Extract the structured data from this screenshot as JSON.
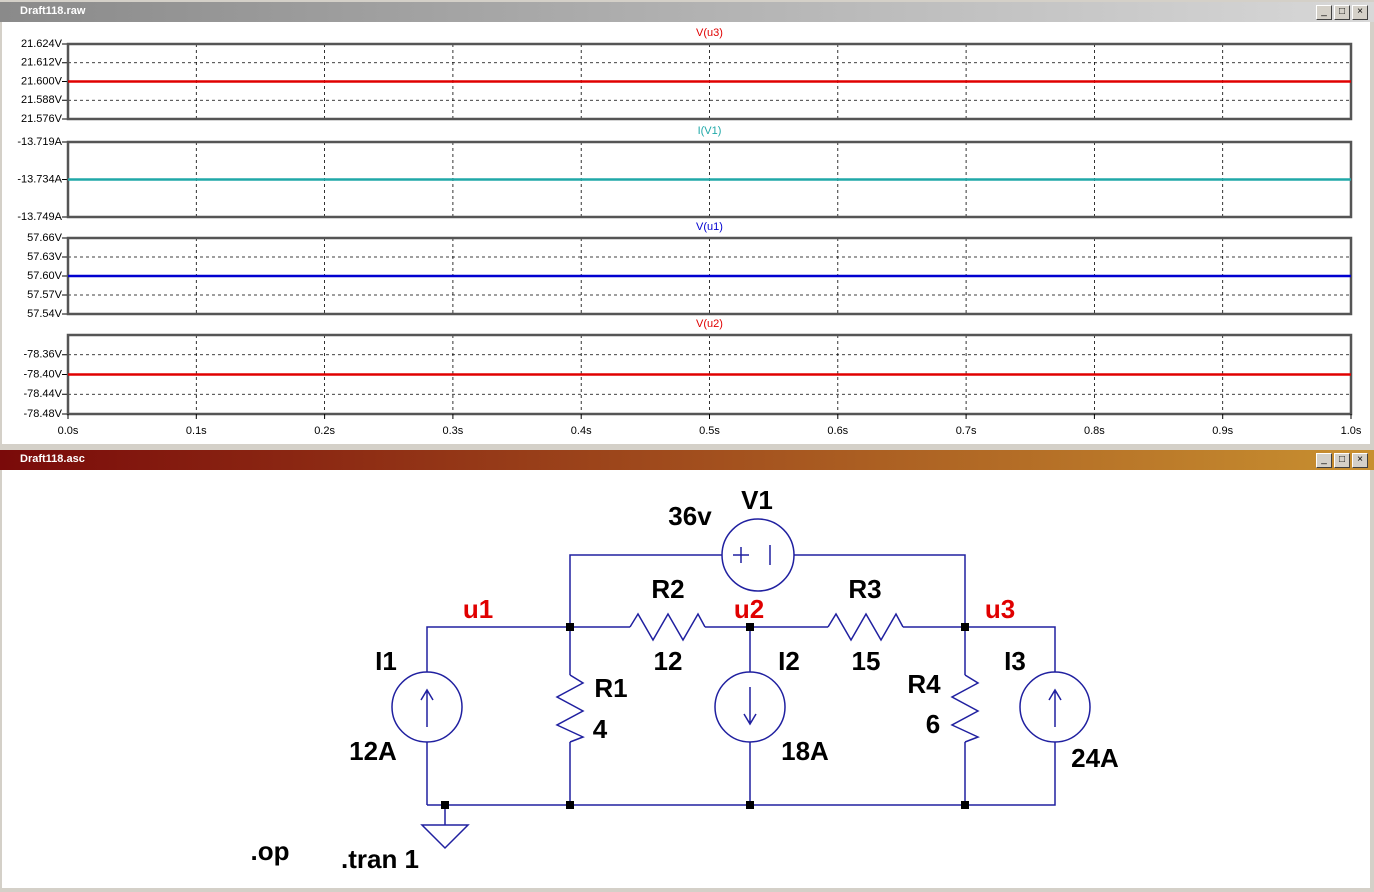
{
  "windows": [
    {
      "title": "Draft118.raw"
    },
    {
      "title": "Draft118.asc"
    }
  ],
  "chart_data": [
    {
      "type": "line",
      "x": [
        0,
        1
      ],
      "xlim": [
        0,
        1
      ],
      "ylim": [
        21.576,
        21.624
      ],
      "yticks": [
        {
          "value": 21.624,
          "label": "21.624V"
        },
        {
          "value": 21.612,
          "label": "21.612V"
        },
        {
          "value": 21.6,
          "label": "21.600V"
        },
        {
          "value": 21.588,
          "label": "21.588V"
        },
        {
          "value": 21.576,
          "label": "21.576V"
        }
      ],
      "grid": true,
      "series": [
        {
          "name": "V(u3)",
          "color": "#e00000",
          "values": [
            21.6,
            21.6
          ]
        }
      ]
    },
    {
      "type": "line",
      "x": [
        0,
        1
      ],
      "xlim": [
        0,
        1
      ],
      "ylim": [
        -13.749,
        -13.719
      ],
      "yticks": [
        {
          "value": -13.719,
          "label": "-13.719A"
        },
        {
          "value": -13.734,
          "label": "-13.734A"
        },
        {
          "value": -13.749,
          "label": "-13.749A"
        }
      ],
      "grid": true,
      "series": [
        {
          "name": "I(V1)",
          "color": "#20a8a8",
          "values": [
            -13.734,
            -13.734
          ]
        }
      ]
    },
    {
      "type": "line",
      "x": [
        0,
        1
      ],
      "xlim": [
        0,
        1
      ],
      "ylim": [
        57.54,
        57.66
      ],
      "yticks": [
        {
          "value": 57.66,
          "label": "57.66V"
        },
        {
          "value": 57.63,
          "label": "57.63V"
        },
        {
          "value": 57.6,
          "label": "57.60V"
        },
        {
          "value": 57.57,
          "label": "57.57V"
        },
        {
          "value": 57.54,
          "label": "57.54V"
        }
      ],
      "grid": true,
      "series": [
        {
          "name": "V(u1)",
          "color": "#0000d0",
          "values": [
            57.6,
            57.6
          ]
        }
      ]
    },
    {
      "type": "line",
      "x": [
        0,
        1
      ],
      "xlim": [
        0,
        1
      ],
      "ylim": [
        -78.48,
        -78.32
      ],
      "yticks": [
        {
          "value": -78.36,
          "label": "-78.36V"
        },
        {
          "value": -78.4,
          "label": "-78.40V"
        },
        {
          "value": -78.44,
          "label": "-78.44V"
        },
        {
          "value": -78.48,
          "label": "-78.48V"
        }
      ],
      "xticks": [
        {
          "value": 0,
          "label": "0.0s"
        },
        {
          "value": 0.1,
          "label": "0.1s"
        },
        {
          "value": 0.2,
          "label": "0.2s"
        },
        {
          "value": 0.3,
          "label": "0.3s"
        },
        {
          "value": 0.4,
          "label": "0.4s"
        },
        {
          "value": 0.5,
          "label": "0.5s"
        },
        {
          "value": 0.6,
          "label": "0.6s"
        },
        {
          "value": 0.7,
          "label": "0.7s"
        },
        {
          "value": 0.8,
          "label": "0.8s"
        },
        {
          "value": 0.9,
          "label": "0.9s"
        },
        {
          "value": 1,
          "label": "1.0s"
        }
      ],
      "grid": true,
      "series": [
        {
          "name": "V(u2)",
          "color": "#e00000",
          "values": [
            -78.4,
            -78.4
          ]
        }
      ]
    }
  ],
  "schematic": {
    "labels": [
      "36v",
      "V1",
      "R2",
      "R3",
      "u1",
      "u2",
      "u3",
      "12",
      "15",
      "I1",
      "I2",
      "R1",
      "4",
      "R4",
      "6",
      "I3",
      "12A",
      "18A",
      "24A",
      ".op",
      ".tran 1"
    ]
  }
}
